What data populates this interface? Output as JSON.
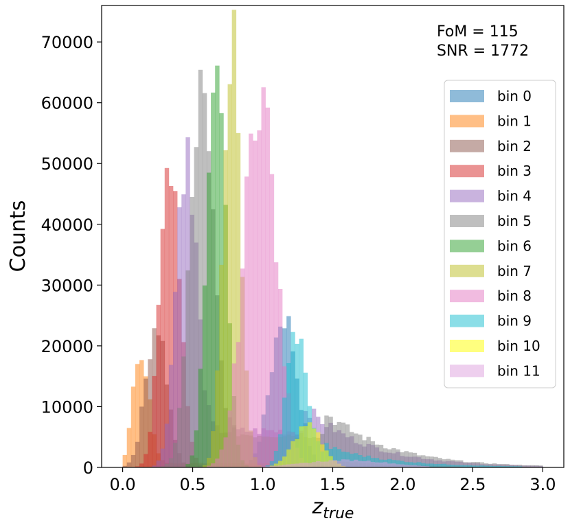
{
  "chart_data": {
    "type": "histogram",
    "xlabel": "z",
    "xlabel_sub": "true",
    "ylabel": "Counts",
    "xlim": [
      -0.15,
      3.15
    ],
    "ylim": [
      0,
      76000
    ],
    "xticks": [
      0.0,
      0.5,
      1.0,
      1.5,
      2.0,
      2.5,
      3.0
    ],
    "xtick_labels": [
      "0.0",
      "0.5",
      "1.0",
      "1.5",
      "2.0",
      "2.5",
      "3.0"
    ],
    "yticks": [
      0,
      10000,
      20000,
      30000,
      40000,
      50000,
      60000,
      70000
    ],
    "ytick_labels": [
      "0",
      "10000",
      "20000",
      "30000",
      "40000",
      "50000",
      "60000",
      "70000"
    ],
    "bin_width": 0.03,
    "opacity": 0.5,
    "legend_position": "upper right",
    "annotations": [
      "FoM = 115",
      "SNR = 1772"
    ],
    "series": [
      {
        "name": "bin 0",
        "color": "#1f77b4",
        "mean": 1.15,
        "sigma": 0.095,
        "peak": 25000,
        "tail_amp": 0,
        "tail_start": 0
      },
      {
        "name": "bin 1",
        "color": "#ff7f0e",
        "mean": 0.13,
        "sigma": 0.055,
        "peak": 20000,
        "tail_amp": 1200,
        "tail_start": 1.5
      },
      {
        "name": "bin 2",
        "color": "#8c564b",
        "mean": 0.24,
        "sigma": 0.075,
        "peak": 24000,
        "tail_amp": 0,
        "tail_start": 0
      },
      {
        "name": "bin 3",
        "color": "#d62728",
        "mean": 0.34,
        "sigma": 0.07,
        "peak": 52000,
        "tail_amp": 0,
        "tail_start": 0
      },
      {
        "name": "bin 4",
        "color": "#9467bd",
        "mean": 0.45,
        "sigma": 0.07,
        "peak": 52000,
        "tail_amp": 10000,
        "tail_start": 1.3
      },
      {
        "name": "bin 5",
        "color": "#7f7f7f",
        "mean": 0.56,
        "sigma": 0.08,
        "peak": 61000,
        "tail_amp": 9000,
        "tail_start": 1.45
      },
      {
        "name": "bin 6",
        "color": "#2ca02c",
        "mean": 0.67,
        "sigma": 0.065,
        "peak": 73000,
        "tail_amp": 0,
        "tail_start": 0
      },
      {
        "name": "bin 7",
        "color": "#bcbd22",
        "mean": 0.78,
        "sigma": 0.06,
        "peak": 73000,
        "tail_amp": 0,
        "tail_start": 0
      },
      {
        "name": "bin 8",
        "color": "#e377c2",
        "mean": 0.98,
        "sigma": 0.11,
        "peak": 63000,
        "tail_amp": 0,
        "tail_start": 0
      },
      {
        "name": "bin 9",
        "color": "#17becf",
        "mean": 1.24,
        "sigma": 0.07,
        "peak": 22500,
        "tail_amp": 3500,
        "tail_start": 1.45
      },
      {
        "name": "bin 10",
        "color": "#ffff00",
        "mean": 1.32,
        "sigma": 0.1,
        "peak": 7000,
        "tail_amp": 0,
        "tail_start": 0
      },
      {
        "name": "bin 11",
        "color": "#dda0dd",
        "mean": 1.6,
        "sigma": 0.3,
        "peak": 1200,
        "tail_amp": 0,
        "tail_start": 0
      }
    ]
  }
}
